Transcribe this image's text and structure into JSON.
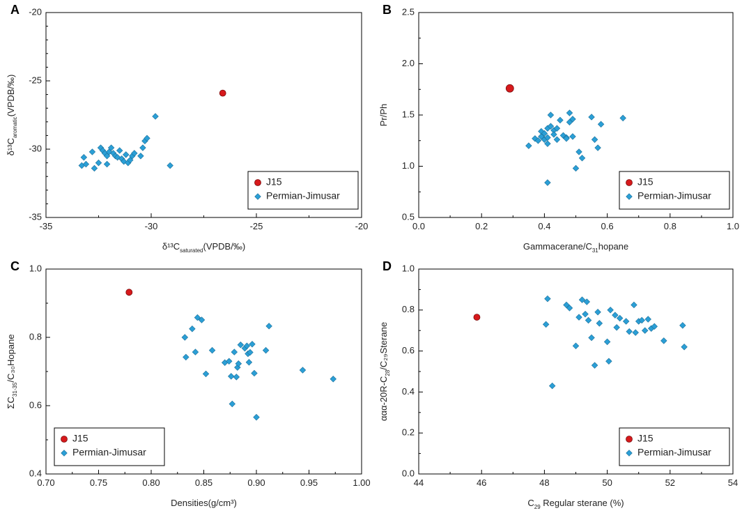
{
  "chart_data": [
    {
      "panel": "A",
      "type": "scatter",
      "xlabel": "δ¹³C",
      "xlabel_sub": "saturated",
      "xlabel_tail": "(VPDB/‰)",
      "ylabel": "δ¹³C",
      "ylabel_sub": "aromatic",
      "ylabel_tail": "(VPDB/‰)",
      "xlim": [
        -35,
        -20
      ],
      "ylim": [
        -35,
        -20
      ],
      "xticks": [
        -35,
        -30,
        -25,
        -20
      ],
      "yticks": [
        -35,
        -30,
        -25,
        -20
      ],
      "legend_position": "bottom-right",
      "series": [
        {
          "name": "J15",
          "marker": "circle",
          "color": "#d7191c",
          "points": [
            [
              -26.6,
              -25.9
            ]
          ]
        },
        {
          "name": "Permian-Jimusar",
          "marker": "diamond",
          "color": "#2b9fd6",
          "points": [
            [
              -33.3,
              -31.2
            ],
            [
              -33.2,
              -30.6
            ],
            [
              -33.1,
              -31.1
            ],
            [
              -32.8,
              -30.2
            ],
            [
              -32.7,
              -31.4
            ],
            [
              -32.5,
              -31.0
            ],
            [
              -32.4,
              -29.9
            ],
            [
              -32.3,
              -30.1
            ],
            [
              -32.2,
              -30.3
            ],
            [
              -32.1,
              -31.1
            ],
            [
              -32.1,
              -30.5
            ],
            [
              -32.0,
              -30.2
            ],
            [
              -31.9,
              -29.9
            ],
            [
              -31.8,
              -30.3
            ],
            [
              -31.7,
              -30.5
            ],
            [
              -31.6,
              -30.6
            ],
            [
              -31.5,
              -30.1
            ],
            [
              -31.4,
              -30.7
            ],
            [
              -31.3,
              -30.9
            ],
            [
              -31.2,
              -30.4
            ],
            [
              -31.1,
              -31.0
            ],
            [
              -31.0,
              -30.8
            ],
            [
              -30.9,
              -30.5
            ],
            [
              -30.8,
              -30.3
            ],
            [
              -30.5,
              -30.5
            ],
            [
              -30.4,
              -29.9
            ],
            [
              -30.3,
              -29.4
            ],
            [
              -30.2,
              -29.2
            ],
            [
              -29.8,
              -27.6
            ],
            [
              -29.1,
              -31.2
            ]
          ]
        }
      ]
    },
    {
      "panel": "B",
      "type": "scatter",
      "xlabel": "Gammacerane/C",
      "xlabel_sub": "31",
      "xlabel_tail": "hopane",
      "ylabel": "Pr/Ph",
      "ylabel_sub": "",
      "ylabel_tail": "",
      "xlim": [
        0.0,
        1.0
      ],
      "ylim": [
        0.5,
        2.5
      ],
      "xticks": [
        0.0,
        0.2,
        0.4,
        0.6,
        0.8,
        1.0
      ],
      "yticks": [
        0.5,
        1.0,
        1.5,
        2.0,
        2.5
      ],
      "legend_position": "bottom-right",
      "series": [
        {
          "name": "J15",
          "marker": "circle",
          "color": "#d7191c",
          "points": [
            [
              0.29,
              1.76
            ]
          ]
        },
        {
          "name": "Permian-Jimusar",
          "marker": "diamond",
          "color": "#2b9fd6",
          "points": [
            [
              0.35,
              1.2
            ],
            [
              0.37,
              1.27
            ],
            [
              0.38,
              1.25
            ],
            [
              0.39,
              1.29
            ],
            [
              0.39,
              1.34
            ],
            [
              0.4,
              1.26
            ],
            [
              0.4,
              1.32
            ],
            [
              0.41,
              1.22
            ],
            [
              0.41,
              1.28
            ],
            [
              0.41,
              1.37
            ],
            [
              0.42,
              1.5
            ],
            [
              0.42,
              1.39
            ],
            [
              0.43,
              1.35
            ],
            [
              0.43,
              1.31
            ],
            [
              0.44,
              1.26
            ],
            [
              0.44,
              1.37
            ],
            [
              0.45,
              1.45
            ],
            [
              0.46,
              1.3
            ],
            [
              0.47,
              1.28
            ],
            [
              0.47,
              1.27
            ],
            [
              0.48,
              1.52
            ],
            [
              0.48,
              1.43
            ],
            [
              0.49,
              1.29
            ],
            [
              0.49,
              1.46
            ],
            [
              0.5,
              0.98
            ],
            [
              0.51,
              1.14
            ],
            [
              0.52,
              1.08
            ],
            [
              0.55,
              1.48
            ],
            [
              0.56,
              1.26
            ],
            [
              0.57,
              1.18
            ],
            [
              0.58,
              1.41
            ],
            [
              0.65,
              1.47
            ],
            [
              0.41,
              0.84
            ]
          ]
        }
      ]
    },
    {
      "panel": "C",
      "type": "scatter",
      "xlabel": "Densities",
      "xlabel_sub": "",
      "xlabel_tail": "(g/cm³)",
      "ylabel": "ΣC",
      "ylabel_sub": "31-35",
      "ylabel_tail": "/C₃₀Hopane",
      "xlim": [
        0.7,
        1.0
      ],
      "ylim": [
        0.4,
        1.0
      ],
      "xticks": [
        0.7,
        0.75,
        0.8,
        0.85,
        0.9,
        0.95,
        1.0
      ],
      "yticks": [
        0.4,
        0.6,
        0.8,
        1.0
      ],
      "legend_position": "bottom-left",
      "series": [
        {
          "name": "J15",
          "marker": "circle",
          "color": "#d7191c",
          "points": [
            [
              0.779,
              0.932
            ]
          ]
        },
        {
          "name": "Permian-Jimusar",
          "marker": "diamond",
          "color": "#2b9fd6",
          "points": [
            [
              0.832,
              0.8
            ],
            [
              0.833,
              0.742
            ],
            [
              0.839,
              0.825
            ],
            [
              0.842,
              0.757
            ],
            [
              0.844,
              0.858
            ],
            [
              0.848,
              0.851
            ],
            [
              0.852,
              0.693
            ],
            [
              0.858,
              0.762
            ],
            [
              0.87,
              0.726
            ],
            [
              0.874,
              0.73
            ],
            [
              0.876,
              0.686
            ],
            [
              0.877,
              0.605
            ],
            [
              0.879,
              0.757
            ],
            [
              0.881,
              0.684
            ],
            [
              0.882,
              0.712
            ],
            [
              0.883,
              0.723
            ],
            [
              0.885,
              0.778
            ],
            [
              0.889,
              0.768
            ],
            [
              0.891,
              0.775
            ],
            [
              0.892,
              0.752
            ],
            [
              0.893,
              0.727
            ],
            [
              0.894,
              0.756
            ],
            [
              0.896,
              0.78
            ],
            [
              0.898,
              0.695
            ],
            [
              0.9,
              0.566
            ],
            [
              0.909,
              0.762
            ],
            [
              0.912,
              0.833
            ],
            [
              0.944,
              0.704
            ],
            [
              0.973,
              0.678
            ]
          ]
        }
      ]
    },
    {
      "panel": "D",
      "type": "scatter",
      "xlabel": "C",
      "xlabel_sub": "29",
      "xlabel_tail": " Regular sterane (%)",
      "ylabel": "ααα-20R-C",
      "ylabel_sub": "28",
      "ylabel_tail": "/C₂₉Sterane",
      "xlim": [
        44,
        54
      ],
      "ylim": [
        0.0,
        1.0
      ],
      "xticks": [
        44,
        46,
        48,
        50,
        52,
        54
      ],
      "yticks": [
        0.0,
        0.2,
        0.4,
        0.6,
        0.8,
        1.0
      ],
      "legend_position": "bottom-right",
      "series": [
        {
          "name": "J15",
          "marker": "circle",
          "color": "#d7191c",
          "points": [
            [
              45.85,
              0.765
            ]
          ]
        },
        {
          "name": "Permian-Jimusar",
          "marker": "diamond",
          "color": "#2b9fd6",
          "points": [
            [
              48.05,
              0.73
            ],
            [
              48.1,
              0.855
            ],
            [
              48.25,
              0.43
            ],
            [
              48.7,
              0.825
            ],
            [
              48.8,
              0.81
            ],
            [
              49.0,
              0.625
            ],
            [
              49.1,
              0.765
            ],
            [
              49.2,
              0.85
            ],
            [
              49.3,
              0.78
            ],
            [
              49.35,
              0.84
            ],
            [
              49.4,
              0.75
            ],
            [
              49.5,
              0.665
            ],
            [
              49.6,
              0.53
            ],
            [
              49.7,
              0.79
            ],
            [
              49.75,
              0.735
            ],
            [
              50.0,
              0.645
            ],
            [
              50.05,
              0.55
            ],
            [
              50.1,
              0.8
            ],
            [
              50.25,
              0.775
            ],
            [
              50.3,
              0.715
            ],
            [
              50.4,
              0.76
            ],
            [
              50.6,
              0.745
            ],
            [
              50.7,
              0.695
            ],
            [
              50.85,
              0.825
            ],
            [
              50.9,
              0.69
            ],
            [
              51.0,
              0.745
            ],
            [
              51.1,
              0.75
            ],
            [
              51.2,
              0.7
            ],
            [
              51.3,
              0.755
            ],
            [
              51.4,
              0.71
            ],
            [
              51.5,
              0.72
            ],
            [
              51.8,
              0.65
            ],
            [
              52.4,
              0.725
            ],
            [
              52.45,
              0.62
            ]
          ]
        }
      ]
    }
  ]
}
